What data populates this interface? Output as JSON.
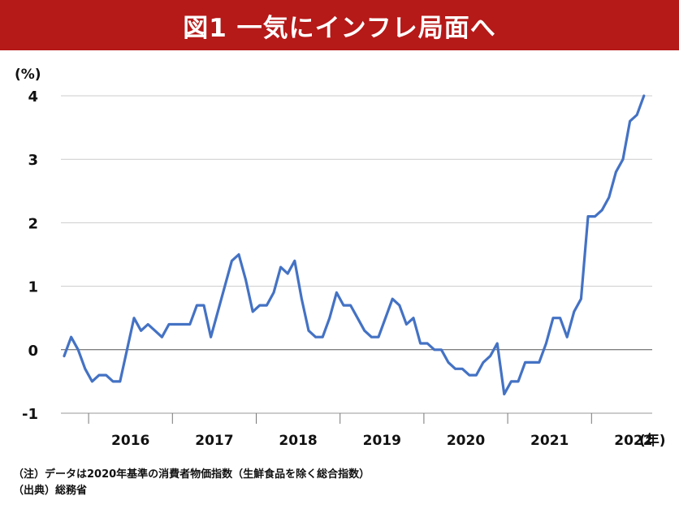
{
  "header": {
    "title": "図1 一気にインフレ局面へ"
  },
  "chart_data": {
    "type": "line",
    "ylabel": "(%)",
    "xlabel": "(年)",
    "ylim": [
      -1,
      4
    ],
    "yticks": [
      -1,
      0,
      1,
      2,
      3,
      4
    ],
    "grid": true,
    "color": "#4472c4",
    "x_start": "2015-09",
    "frequency": "monthly",
    "year_labels": [
      "2016",
      "2017",
      "2018",
      "2019",
      "2020",
      "2021",
      "2022"
    ],
    "series": [
      {
        "values": [
          -0.1,
          0.2,
          0.0,
          -0.3,
          -0.5,
          -0.4,
          -0.4,
          -0.5,
          -0.5,
          0.0,
          0.5,
          0.3,
          0.4,
          0.3,
          0.2,
          0.4,
          0.4,
          0.4,
          0.4,
          0.7,
          0.7,
          0.2,
          0.6,
          1.0,
          1.4,
          1.5,
          1.1,
          0.6,
          0.7,
          0.7,
          0.9,
          1.3,
          1.2,
          1.4,
          0.8,
          0.3,
          0.2,
          0.2,
          0.5,
          0.9,
          0.7,
          0.7,
          0.5,
          0.3,
          0.2,
          0.2,
          0.5,
          0.8,
          0.7,
          0.4,
          0.5,
          0.1,
          0.1,
          0.0,
          0.0,
          -0.2,
          -0.3,
          -0.3,
          -0.4,
          -0.4,
          -0.2,
          -0.1,
          0.1,
          -0.7,
          -0.5,
          -0.5,
          -0.2,
          -0.2,
          -0.2,
          0.1,
          0.5,
          0.5,
          0.2,
          0.6,
          0.8,
          2.1,
          2.1,
          2.2,
          2.4,
          2.8,
          3.0,
          3.6,
          3.7,
          4.0
        ]
      }
    ]
  },
  "notes": {
    "note1": "（注）データは2020年基準の消費者物価指数（生鮮食品を除く総合指数）",
    "note2": "（出典）総務省"
  }
}
